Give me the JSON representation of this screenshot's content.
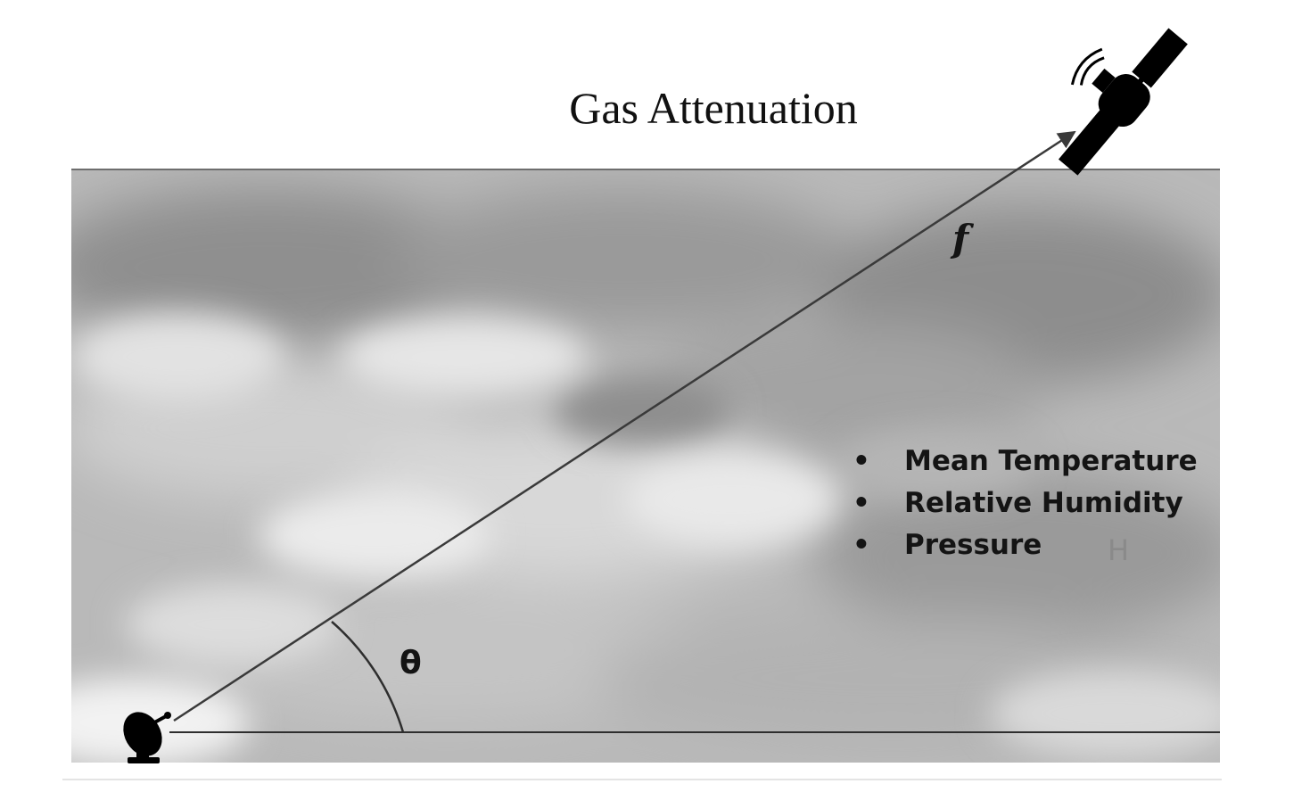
{
  "title": "Gas Attenuation",
  "parameters": {
    "bullet": "•",
    "items": [
      "Mean Temperature",
      "Relative Humidity",
      "Pressure"
    ]
  },
  "labels": {
    "frequency": "f",
    "elevation_angle": "θ",
    "height": "H"
  },
  "icons": {
    "satellite": "satellite-icon",
    "ground_station": "satellite-dish-icon"
  },
  "colors": {
    "sky_light": "#e9e9e9",
    "sky_dark": "#8c8c8c",
    "line": "#3a3a3a",
    "icon": "#000000"
  }
}
